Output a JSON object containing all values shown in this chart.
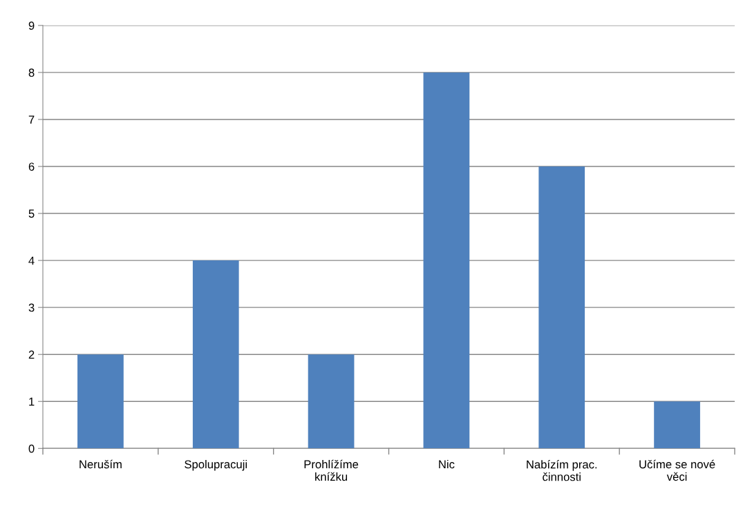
{
  "chart_data": {
    "type": "bar",
    "categories": [
      "Neruším",
      "Spolupracuji",
      "Prohlížíme knížku",
      "Nic",
      "Nabízím prac. činnosti",
      "Učíme se nové věci"
    ],
    "values": [
      2,
      4,
      2,
      8,
      6,
      1
    ],
    "color": "#4f81bd",
    "ylim": [
      0,
      9
    ],
    "yticks": [
      0,
      1,
      2,
      3,
      4,
      5,
      6,
      7,
      8,
      9
    ],
    "grid": "y",
    "legend": false
  }
}
